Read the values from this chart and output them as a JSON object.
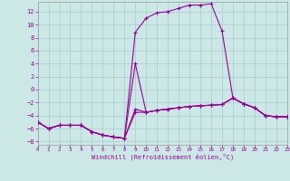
{
  "xlabel": "Windchill (Refroidissement éolien,°C)",
  "xlim": [
    0,
    23
  ],
  "ylim": [
    -8.5,
    13.5
  ],
  "xticks": [
    0,
    1,
    2,
    3,
    4,
    5,
    6,
    7,
    8,
    9,
    10,
    11,
    12,
    13,
    14,
    15,
    16,
    17,
    18,
    19,
    20,
    21,
    22,
    23
  ],
  "yticks": [
    -8,
    -6,
    -4,
    -2,
    0,
    2,
    4,
    6,
    8,
    10,
    12
  ],
  "bg_color": "#cce8e6",
  "grid_color": "#a8cccc",
  "line_color": "#990099",
  "curves": [
    {
      "x": [
        0,
        1,
        2,
        3,
        4,
        5,
        6,
        7,
        8,
        9,
        10,
        11,
        12,
        13,
        14,
        15,
        16,
        17,
        18,
        19,
        20,
        21,
        22,
        23
      ],
      "y": [
        -5.0,
        -6.0,
        -5.5,
        -5.5,
        -5.5,
        -6.5,
        -7.0,
        -7.3,
        -7.5,
        8.8,
        11.0,
        11.8,
        12.0,
        12.5,
        13.0,
        13.0,
        13.2,
        9.0,
        -1.3,
        -2.2,
        -2.8,
        -4.0,
        -4.2,
        -4.2
      ]
    },
    {
      "x": [
        0,
        1,
        2,
        3,
        4,
        5,
        6,
        7,
        8,
        9,
        10,
        11,
        12,
        13,
        14,
        15,
        16,
        17,
        18,
        19,
        20,
        21,
        22,
        23
      ],
      "y": [
        -5.0,
        -6.0,
        -5.5,
        -5.5,
        -5.5,
        -6.5,
        -7.0,
        -7.3,
        -7.5,
        4.0,
        -3.5,
        -3.2,
        -3.0,
        -2.8,
        -2.6,
        -2.5,
        -2.4,
        -2.3,
        -1.3,
        -2.2,
        -2.8,
        -4.0,
        -4.2,
        -4.2
      ]
    },
    {
      "x": [
        0,
        1,
        2,
        3,
        4,
        5,
        6,
        7,
        8,
        9,
        10,
        11,
        12,
        13,
        14,
        15,
        16,
        17,
        18,
        19,
        20,
        21,
        22,
        23
      ],
      "y": [
        -5.0,
        -6.0,
        -5.5,
        -5.5,
        -5.5,
        -6.5,
        -7.0,
        -7.3,
        -7.5,
        -3.0,
        -3.5,
        -3.2,
        -3.0,
        -2.8,
        -2.6,
        -2.5,
        -2.4,
        -2.3,
        -1.3,
        -2.2,
        -2.8,
        -4.0,
        -4.2,
        -4.2
      ]
    },
    {
      "x": [
        0,
        1,
        2,
        3,
        4,
        5,
        6,
        7,
        8,
        9,
        10,
        11,
        12,
        13,
        14,
        15,
        16,
        17,
        18,
        19,
        20,
        21,
        22,
        23
      ],
      "y": [
        -5.0,
        -6.0,
        -5.5,
        -5.5,
        -5.5,
        -6.5,
        -7.0,
        -7.3,
        -7.5,
        -3.5,
        -3.5,
        -3.2,
        -3.0,
        -2.8,
        -2.6,
        -2.5,
        -2.4,
        -2.3,
        -1.3,
        -2.2,
        -2.8,
        -4.0,
        -4.2,
        -4.2
      ]
    }
  ]
}
